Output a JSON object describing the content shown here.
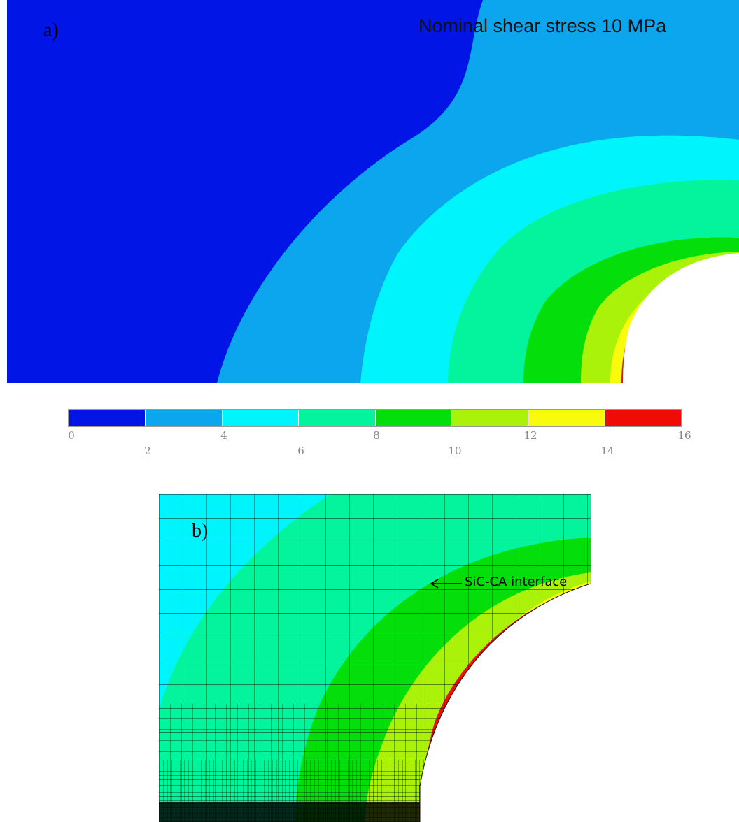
{
  "panel_a": {
    "label": "a)",
    "title": "Nominal shear stress 10 MPa"
  },
  "colorbar": {
    "ticks": [
      "0",
      "2",
      "4",
      "6",
      "8",
      "10",
      "12",
      "14",
      "16"
    ],
    "colors": [
      "#0015e6",
      "#0ca6ee",
      "#00f4fc",
      "#04f49e",
      "#04df0b",
      "#abf20b",
      "#f8fb0c",
      "#f00c05"
    ]
  },
  "panel_b": {
    "label": "b)",
    "annotation": "SiC-CA interface"
  }
}
